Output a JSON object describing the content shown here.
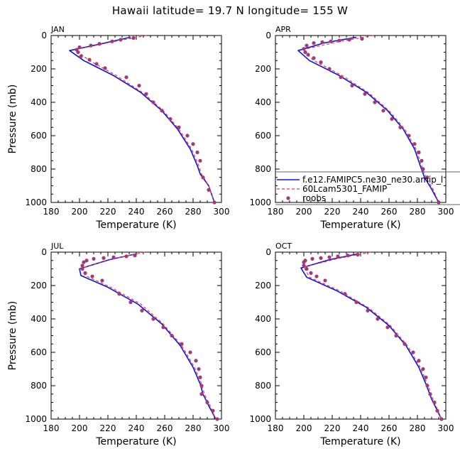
{
  "figure": {
    "title": "Hawaii  latitude= 19.7 N longitude= 155 W"
  },
  "chart_data": [
    {
      "type": "line",
      "panel": "JAN",
      "xlabel": "Temperature (K)",
      "ylabel": "Pressure (mb)",
      "xlim": [
        180,
        300
      ],
      "ylim": [
        1000,
        0
      ],
      "xticks": [
        180,
        200,
        220,
        240,
        260,
        280,
        300
      ],
      "yticks": [
        0,
        200,
        400,
        600,
        800,
        1000
      ],
      "series": [
        {
          "name": "f.e12.FAMIPC5.ne30_ne30.amip_l",
          "style": "solid",
          "color": "#1010e0",
          "x": [
            236,
            215,
            193,
            203,
            224,
            243,
            258,
            269,
            278,
            283,
            285,
            291,
            295
          ],
          "y": [
            10,
            50,
            90,
            150,
            240,
            340,
            450,
            560,
            680,
            780,
            830,
            900,
            1000
          ]
        },
        {
          "name": "60Lcam5301_FAMIP",
          "style": "dashed",
          "color": "#e83a3a",
          "x": [
            247,
            222,
            197,
            207,
            226,
            245,
            259,
            270,
            279,
            284,
            286,
            291,
            295
          ],
          "y": [
            0,
            40,
            85,
            150,
            240,
            345,
            450,
            560,
            680,
            780,
            830,
            900,
            1000
          ]
        },
        {
          "name": "roobs",
          "style": "marker",
          "color": "#a03a7a",
          "x": [
            238,
            229,
            223,
            214,
            208,
            200,
            198,
            199,
            201,
            207,
            212,
            218,
            233,
            242,
            247,
            252,
            258,
            264,
            270,
            276,
            280,
            283,
            285,
            287,
            291,
            295
          ],
          "y": [
            15,
            25,
            35,
            50,
            60,
            70,
            85,
            100,
            125,
            145,
            170,
            195,
            250,
            300,
            350,
            400,
            450,
            500,
            550,
            600,
            650,
            700,
            750,
            850,
            925,
            1000
          ]
        }
      ]
    },
    {
      "type": "line",
      "panel": "APR",
      "xlabel": "Temperature (K)",
      "ylabel": "",
      "xlim": [
        180,
        300
      ],
      "ylim": [
        1000,
        0
      ],
      "xticks": [
        180,
        200,
        220,
        240,
        260,
        280,
        300
      ],
      "yticks": [
        0,
        200,
        400,
        600,
        800,
        1000
      ],
      "legend": "bottom-right",
      "series": [
        {
          "name": "f.e12.FAMIPC5.ne30_ne30.amip_l",
          "style": "solid",
          "color": "#1010e0",
          "x": [
            237,
            214,
            196,
            204,
            225,
            244,
            259,
            270,
            278,
            282,
            285,
            290,
            295
          ],
          "y": [
            10,
            45,
            90,
            150,
            240,
            340,
            450,
            560,
            680,
            780,
            850,
            920,
            1000
          ]
        },
        {
          "name": "60Lcam5301_FAMIP",
          "style": "dashed",
          "color": "#e83a3a",
          "x": [
            249,
            223,
            199,
            207,
            227,
            246,
            260,
            271,
            279,
            283,
            286,
            291,
            295
          ],
          "y": [
            0,
            40,
            85,
            150,
            240,
            345,
            450,
            560,
            680,
            780,
            850,
            920,
            1000
          ]
        },
        {
          "name": "roobs",
          "style": "marker",
          "color": "#a03a7a",
          "x": [
            241,
            232,
            225,
            219,
            213,
            207,
            202,
            200,
            201,
            203,
            207,
            212,
            218,
            226,
            234,
            243,
            250,
            256,
            262,
            268,
            274,
            278,
            281,
            283,
            284,
            287,
            295
          ],
          "y": [
            20,
            25,
            30,
            35,
            40,
            45,
            60,
            80,
            100,
            115,
            135,
            160,
            200,
            250,
            300,
            350,
            400,
            450,
            500,
            550,
            600,
            650,
            700,
            750,
            800,
            850,
            1000
          ]
        }
      ]
    },
    {
      "type": "line",
      "panel": "JUL",
      "xlabel": "Temperature (K)",
      "ylabel": "Pressure (mb)",
      "xlim": [
        180,
        300
      ],
      "ylim": [
        1000,
        0
      ],
      "xticks": [
        180,
        200,
        220,
        240,
        260,
        280,
        300
      ],
      "yticks": [
        0,
        200,
        400,
        600,
        800,
        1000
      ],
      "series": [
        {
          "name": "f.e12.FAMIPC5.ne30_ne30.amip_l",
          "style": "solid",
          "color": "#1010e0",
          "x": [
            240,
            221,
            200,
            201,
            220,
            241,
            258,
            271,
            280,
            285,
            287,
            291,
            296
          ],
          "y": [
            10,
            45,
            100,
            140,
            210,
            310,
            430,
            560,
            690,
            790,
            850,
            920,
            1000
          ]
        },
        {
          "name": "60Lcam5301_FAMIP",
          "style": "dashed",
          "color": "#e83a3a",
          "x": [
            246,
            224,
            202,
            204,
            222,
            243,
            259,
            272,
            281,
            286,
            288,
            292,
            296
          ],
          "y": [
            0,
            40,
            95,
            140,
            210,
            310,
            430,
            560,
            690,
            790,
            850,
            920,
            1000
          ]
        },
        {
          "name": "roobs",
          "style": "marker",
          "color": "#a03a7a",
          "x": [
            239,
            233,
            224,
            217,
            210,
            205,
            203,
            202,
            202,
            204,
            209,
            216,
            228,
            236,
            244,
            252,
            259,
            265,
            272,
            278,
            282,
            284,
            285,
            286,
            286,
            290,
            294,
            297
          ],
          "y": [
            20,
            25,
            30,
            35,
            40,
            50,
            60,
            80,
            100,
            125,
            145,
            170,
            250,
            300,
            350,
            400,
            450,
            500,
            550,
            600,
            650,
            700,
            750,
            800,
            850,
            900,
            950,
            1000
          ]
        }
      ]
    },
    {
      "type": "line",
      "panel": "OCT",
      "xlabel": "Temperature (K)",
      "ylabel": "",
      "xlim": [
        180,
        300
      ],
      "ylim": [
        1000,
        0
      ],
      "xticks": [
        180,
        200,
        220,
        240,
        260,
        280,
        300
      ],
      "yticks": [
        0,
        200,
        400,
        600,
        800,
        1000
      ],
      "series": [
        {
          "name": "f.e12.FAMIPC5.ne30_ne30.amip_l",
          "style": "solid",
          "color": "#1010e0",
          "x": [
            238,
            218,
            198,
            202,
            223,
            244,
            260,
            272,
            281,
            286,
            290,
            297
          ],
          "y": [
            10,
            45,
            95,
            150,
            230,
            330,
            440,
            560,
            690,
            790,
            880,
            1000
          ]
        },
        {
          "name": "60Lcam5301_FAMIP",
          "style": "dashed",
          "color": "#e83a3a",
          "x": [
            247,
            223,
            200,
            204,
            225,
            246,
            261,
            273,
            282,
            287,
            291,
            297
          ],
          "y": [
            0,
            40,
            90,
            150,
            230,
            335,
            440,
            560,
            690,
            790,
            880,
            1000
          ]
        },
        {
          "name": "roobs",
          "style": "marker",
          "color": "#a03a7a",
          "x": [
            238,
            231,
            224,
            218,
            212,
            206,
            201,
            200,
            200,
            202,
            205,
            209,
            215,
            229,
            237,
            245,
            252,
            259,
            265,
            271,
            277,
            281,
            284,
            286,
            287,
            289,
            292,
            294,
            297
          ],
          "y": [
            15,
            20,
            25,
            30,
            35,
            40,
            50,
            60,
            80,
            100,
            125,
            145,
            170,
            250,
            300,
            350,
            400,
            450,
            500,
            550,
            600,
            650,
            700,
            750,
            800,
            850,
            900,
            950,
            1000
          ]
        }
      ]
    }
  ]
}
